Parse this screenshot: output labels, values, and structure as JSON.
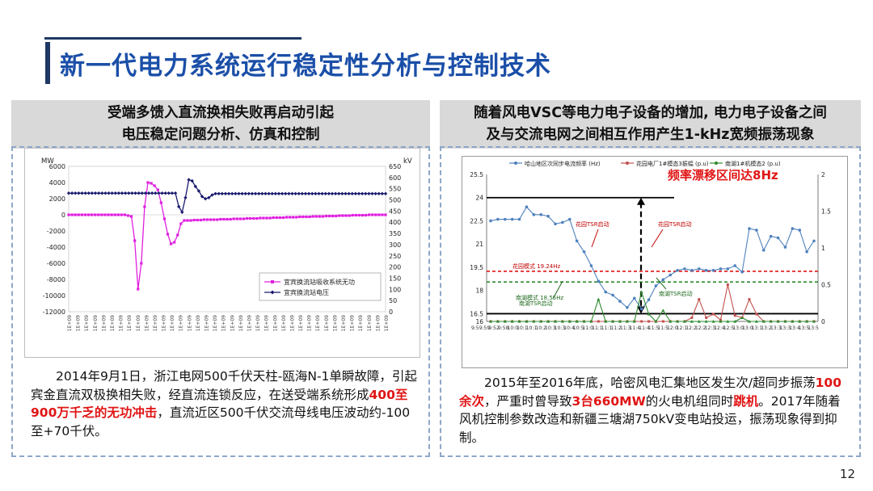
{
  "slide": {
    "title": "新一代电力系统运行稳定性分析与控制技术",
    "page_number": "12"
  },
  "left_panel": {
    "header_line1": "受端多馈入直流换相失败再启动引起",
    "header_line2": "电压稳定问题分析、仿真和控制",
    "desc": {
      "p1": "2014年9月1日，浙江电网500千伏天柱-瓯海N-1单瞬故障，引起宾金直流双极换相失败，经直流连锁反应，在送受端系统形成",
      "h1": "400至900万千乏的无功冲击",
      "p2": "，直流近区500千伏交流母线电压波动约-100至+70千伏。"
    }
  },
  "right_panel": {
    "header_line1": "随着风电VSC等电力电子设备的增加, 电力电子设备之间",
    "header_line2": "及与交流电网之间相互作用产生1-kHz宽频振荡现象",
    "desc": {
      "p1": "2015年至2016年底，哈密风电汇集地区发生次/超同步振荡",
      "h1": "100余次",
      "p2": "，严重时曾导致",
      "h2": "3台660MW",
      "p3": "的火电机组同时",
      "h3": "跳机",
      "p4": "。2017年随着风机控制参数改造和新疆三塘湖750kV变电站投运，振荡现象得到抑制。"
    }
  },
  "chart_data": [
    {
      "type": "line",
      "ylabel": "MW",
      "y2label": "kV",
      "ylim": [
        -12000,
        6000
      ],
      "y_ticks": [
        "6000",
        "4000",
        "2000",
        "0",
        "-2000",
        "-4000",
        "-6000",
        "-8000",
        "-10000",
        "-12000"
      ],
      "y2lim": [
        0,
        650
      ],
      "y2_ticks": [
        "650",
        "600",
        "550",
        "500",
        "450",
        "400",
        "350",
        "300",
        "250",
        "200",
        "150",
        "100",
        "50",
        "0"
      ],
      "x_tick_label": "1E+09",
      "x_tick_count": 38,
      "legend_position": "bottom-right",
      "series": [
        {
          "name": "宜宾换流站吸收系统无功",
          "axis": "left",
          "color": "#e020e0",
          "values": [
            0,
            0,
            0,
            0,
            0,
            0,
            0,
            0,
            0,
            0,
            0,
            0,
            0,
            0,
            0,
            0,
            0,
            0,
            -100,
            -200,
            -3200,
            -9200,
            -6000,
            1000,
            4000,
            3900,
            3600,
            3100,
            1500,
            -500,
            -2400,
            -3600,
            -3400,
            -2500,
            -1100,
            -700,
            -700,
            -700,
            -650,
            -650,
            -650,
            -600,
            -600,
            -600,
            -600,
            -600,
            -550,
            -550,
            -550,
            -550,
            -500,
            -500,
            -500,
            -500,
            -450,
            -450,
            -450,
            -450,
            -400,
            -400,
            -400,
            -400,
            -350,
            -350,
            -350,
            -350,
            -300,
            -300,
            -300,
            -300,
            -250,
            -250,
            -250,
            -250,
            -200,
            -200,
            -200,
            -200,
            -150,
            -150,
            -150,
            -150,
            -100,
            -100,
            -100,
            -100,
            -50,
            -50,
            -50,
            -50,
            -50,
            0,
            0,
            0,
            0,
            0,
            0
          ]
        },
        {
          "name": "宜宾换流站电压",
          "axis": "right",
          "color": "#1a1a6e",
          "values": [
            530,
            530,
            530,
            530,
            530,
            530,
            530,
            530,
            530,
            530,
            530,
            530,
            530,
            530,
            530,
            530,
            530,
            530,
            530,
            530,
            530,
            530,
            530,
            530,
            530,
            530,
            530,
            530,
            530,
            530,
            530,
            530,
            530,
            470,
            445,
            510,
            590,
            585,
            560,
            540,
            515,
            505,
            510,
            522,
            528,
            528,
            528,
            528,
            528,
            528,
            528,
            528,
            528,
            528,
            528,
            528,
            528,
            528,
            528,
            528,
            528,
            528,
            528,
            528,
            528,
            528,
            528,
            528,
            528,
            528,
            528,
            528,
            528,
            528,
            528,
            528,
            528,
            528,
            528,
            528,
            528,
            528,
            528,
            528,
            528,
            528,
            528,
            528,
            528,
            528,
            528,
            528,
            528,
            528,
            528,
            528
          ]
        }
      ]
    },
    {
      "type": "line",
      "ylim": [
        16,
        25.5
      ],
      "y_ticks": [
        "25.5",
        "24",
        "22.5",
        "21",
        "19.5",
        "18",
        "16.5",
        "16"
      ],
      "y2lim": [
        0,
        2
      ],
      "y2_ticks": [
        "2",
        "1.5",
        "1",
        "0.5",
        "0"
      ],
      "x_tick_labels": [
        "9:5",
        "9:59",
        "9:52",
        "9:58",
        "10:0",
        "10:1",
        "10:1",
        "10:2",
        "10:3",
        "10:3",
        "10:4",
        "10:5",
        "11:0",
        "11:1",
        "11:1",
        "11:2",
        "11:3",
        "11:4",
        "11:4",
        "11:5",
        "11:5",
        "12:0",
        "12:1",
        "12:2",
        "12:2",
        "12:3",
        "12:4",
        "12:5",
        "13:0",
        "13:0",
        "13:1",
        "13:2",
        "13:3",
        "13:3",
        "13:4",
        "13:5",
        "13:5"
      ],
      "legend_position": "top",
      "series": [
        {
          "name": "哈山地区次同步电流频率 (Hz)",
          "axis": "left",
          "color": "#4f81bd",
          "values": [
            22.5,
            22.6,
            22.6,
            22.6,
            22.6,
            23.4,
            22.9,
            22.9,
            22.8,
            22.3,
            22.4,
            22.6,
            21.2,
            20.5,
            19.6,
            18.6,
            17.9,
            17.7,
            17.3,
            16.9,
            17.5,
            16.8,
            17.4,
            18.3,
            18.7,
            19.0,
            19.3,
            19.4,
            19.3,
            19.4,
            19.3,
            19.3,
            19.4,
            19.4,
            19.6,
            19.2,
            22.0,
            21.9,
            20.6,
            21.5,
            21.4,
            20.8,
            22.0,
            21.9,
            20.5,
            21.2
          ]
        },
        {
          "name": "花园电厂1#模态3振幅 (p.u)",
          "axis": "right",
          "color": "#c0504d",
          "values": [
            0,
            0,
            0,
            0,
            0,
            0,
            0,
            0,
            0,
            0,
            0,
            0,
            0,
            0,
            0,
            0,
            0,
            0,
            0,
            0,
            0,
            0,
            0,
            0,
            0,
            0,
            0,
            0,
            0.05,
            0.3,
            0.05,
            0.1,
            0.02,
            0.5,
            0.08,
            0.05,
            0.3,
            0.1,
            0,
            0,
            0,
            0,
            0,
            0,
            0,
            0
          ]
        },
        {
          "name": "南湖1#机模态2 (p.u)",
          "axis": "right",
          "color": "#2e8b2e",
          "values": [
            0,
            0,
            0,
            0,
            0,
            0,
            0,
            0,
            0,
            0,
            0,
            0,
            0,
            0,
            0,
            0.3,
            0,
            0,
            0,
            0,
            0,
            0.4,
            0.1,
            0,
            0.15,
            0,
            0,
            0,
            0,
            0,
            0,
            0,
            0,
            0,
            0,
            0.05,
            0,
            0,
            0,
            0,
            0,
            0,
            0,
            0,
            0,
            0
          ]
        }
      ],
      "annotations": {
        "drift": "频率漂移区间达8Hz",
        "tsr_start": "花园TSR启动",
        "tsr_start2": "花园TSR启动",
        "garden_mode": "花园模式 19.24Hz",
        "nanhu_mode": "南湖模式 18.55Hz",
        "nanhu_tsr": "南湖TSR启动",
        "nanhu_tsr2": "南湖TSR启动"
      },
      "reference_lines": [
        {
          "name": "花园模式",
          "value": 19.24,
          "color": "#e01515"
        },
        {
          "name": "南湖模式",
          "value": 18.55,
          "color": "#2e8b2e"
        },
        {
          "name": "upper",
          "value": 24.0,
          "color": "#000000"
        },
        {
          "name": "lower",
          "value": 16.5,
          "color": "#000000"
        }
      ]
    }
  ]
}
